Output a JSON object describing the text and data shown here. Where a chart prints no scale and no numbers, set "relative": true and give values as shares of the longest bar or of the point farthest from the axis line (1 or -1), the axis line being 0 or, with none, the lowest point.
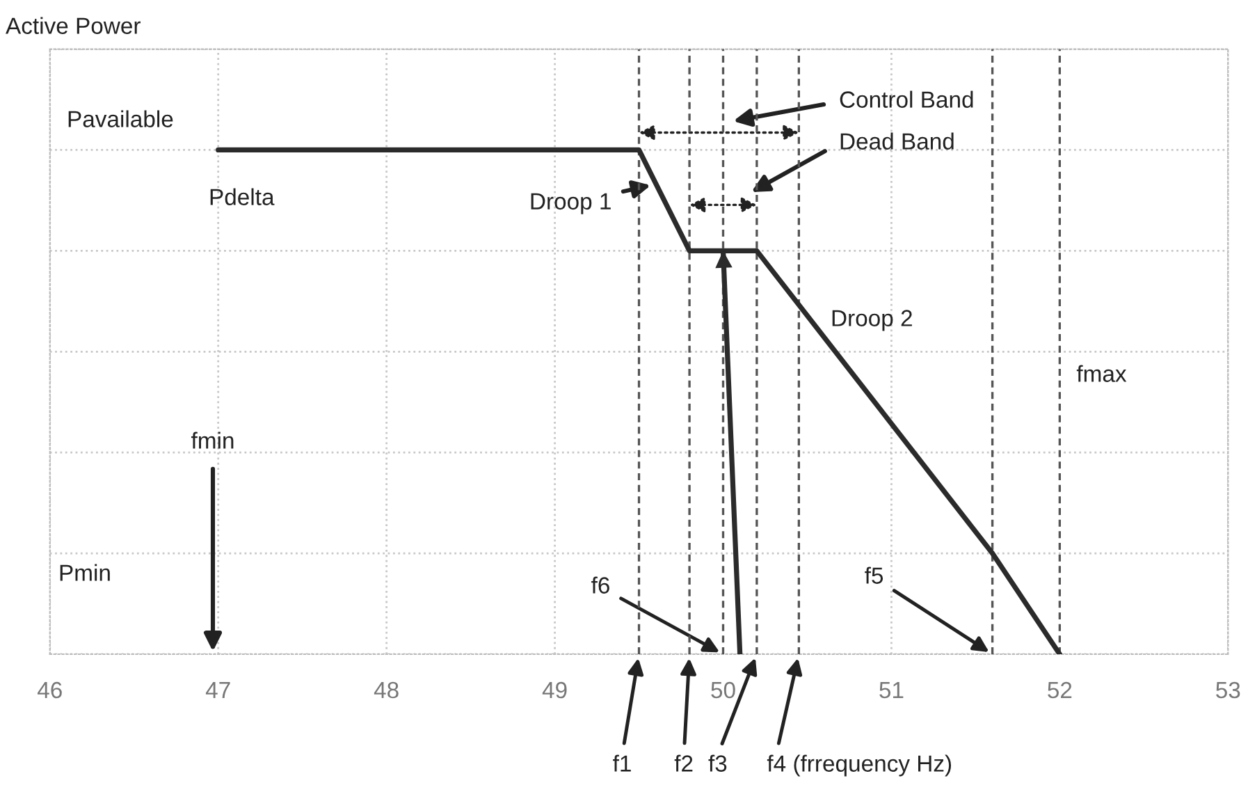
{
  "chart_data": {
    "type": "line",
    "relative": true,
    "xlim": [
      46,
      53
    ],
    "xticks": [
      46,
      47,
      48,
      49,
      50,
      51,
      52,
      53
    ],
    "grid": true,
    "tick_labels": "x",
    "marker": "none",
    "line_style": "solid",
    "series": [
      {
        "color": "#2b2b2b",
        "x": [
          47,
          49.5,
          49.8,
          50.2,
          51.6,
          52.0
        ],
        "values": [
          1,
          1,
          0.8,
          0.8,
          0.2,
          0
        ]
      },
      {
        "color": "#2b2b2b",
        "x": [
          50.1,
          50.0
        ],
        "values": [
          0,
          0.8
        ]
      }
    ],
    "ref_lines": [
      {
        "axis": "x",
        "value": 49.5,
        "label": "f1",
        "line_style": "dashed",
        "color": "#555555"
      },
      {
        "axis": "x",
        "value": 49.8,
        "label": "f2",
        "line_style": "dashed",
        "color": "#555555"
      },
      {
        "axis": "x",
        "value": 50.0,
        "label": "f6",
        "line_style": "dashed",
        "color": "#555555"
      },
      {
        "axis": "x",
        "value": 50.2,
        "label": "f3",
        "line_style": "dashed",
        "color": "#555555"
      },
      {
        "axis": "x",
        "value": 50.45,
        "label": "f4 (frrequency Hz)",
        "line_style": "dashed",
        "color": "#555555"
      },
      {
        "axis": "x",
        "value": 51.6,
        "label": "f5",
        "line_style": "dashed",
        "color": "#555555"
      },
      {
        "axis": "x",
        "value": 52.0,
        "label": "fmax",
        "line_style": "dashed",
        "color": "#555555"
      }
    ],
    "annotations": [
      "Active Power",
      "Pavailable",
      "Pdelta",
      "Pmin",
      "fmin",
      {
        "text": "Droop 1",
        "x": 49.57,
        "y": 0.93
      },
      "Droop 2",
      "Control Band",
      "Dead Band"
    ]
  }
}
